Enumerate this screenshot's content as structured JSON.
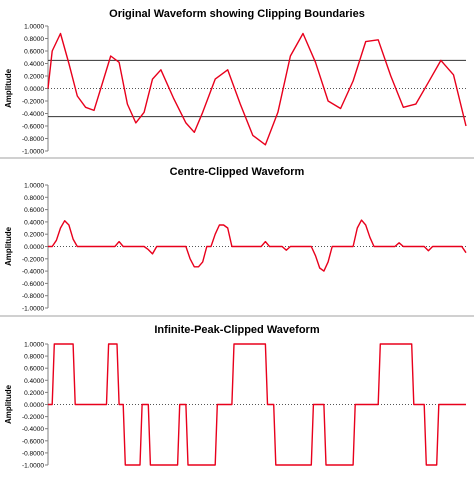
{
  "chart_data": [
    {
      "type": "line",
      "title": "Original Waveform showing Clipping Boundaries",
      "ylabel": "Amplitude",
      "ylim": [
        -1,
        1
      ],
      "yticks": [
        "1.0000",
        "0.8000",
        "0.6000",
        "0.4000",
        "0.2000",
        "0.0000",
        "-0.2000",
        "-0.4000",
        "-0.6000",
        "-0.8000",
        "-1.0000"
      ],
      "grid": false,
      "clip_lines": [
        0.45,
        -0.45
      ],
      "series": [
        {
          "color": "#e8001c",
          "x": [
            0,
            1,
            3,
            5,
            7,
            9,
            11,
            13,
            15,
            17,
            19,
            21,
            23,
            25,
            27,
            30,
            33,
            35,
            37,
            40,
            43,
            46,
            49,
            52,
            55,
            58,
            61,
            64,
            67,
            70,
            73,
            76,
            79,
            82,
            85,
            88,
            91,
            94,
            97,
            100
          ],
          "y": [
            0,
            0.6,
            0.88,
            0.4,
            -0.12,
            -0.3,
            -0.35,
            0.08,
            0.52,
            0.42,
            -0.25,
            -0.55,
            -0.38,
            0.15,
            0.3,
            -0.15,
            -0.55,
            -0.7,
            -0.38,
            0.15,
            0.3,
            -0.25,
            -0.75,
            -0.9,
            -0.38,
            0.52,
            0.88,
            0.42,
            -0.2,
            -0.32,
            0.12,
            0.75,
            0.78,
            0.2,
            -0.3,
            -0.25,
            0.1,
            0.45,
            0.22,
            -0.6
          ]
        }
      ]
    },
    {
      "type": "line",
      "title": "Centre-Clipped  Waveform",
      "ylabel": "Amplitude",
      "ylim": [
        -1,
        1
      ],
      "yticks": [
        "1.0000",
        "0.8000",
        "0.6000",
        "0.4000",
        "0.2000",
        "0.0000",
        "-0.2000",
        "-0.4000",
        "-0.6000",
        "-0.8000",
        "-1.0000"
      ],
      "grid": false,
      "series": [
        {
          "color": "#e8001c",
          "x": [
            0,
            1,
            2,
            3,
            4,
            5,
            6,
            7,
            8,
            9,
            10,
            11,
            12,
            13,
            14,
            15,
            16,
            17,
            18,
            19,
            20,
            21,
            22,
            23,
            24,
            25,
            26,
            27,
            28,
            29,
            30,
            31,
            32,
            33,
            34,
            35,
            36,
            37,
            38,
            39,
            40,
            41,
            42,
            43,
            44,
            45,
            46,
            47,
            48,
            49,
            50,
            51,
            52,
            53,
            54,
            55,
            56,
            57,
            58,
            59,
            60,
            61,
            62,
            63,
            64,
            65,
            66,
            67,
            68,
            69,
            70,
            71,
            72,
            73,
            74,
            75,
            76,
            77,
            78,
            79,
            80,
            81,
            82,
            83,
            84,
            85,
            86,
            87,
            88,
            89,
            90,
            91,
            92,
            93,
            94,
            95,
            96,
            97,
            98,
            99,
            100
          ],
          "y": [
            0,
            0,
            0.1,
            0.3,
            0.42,
            0.35,
            0.12,
            0,
            0,
            0,
            0,
            0,
            0,
            0,
            0,
            0,
            0,
            0.08,
            0,
            0,
            0,
            0,
            0,
            0,
            -0.05,
            -0.12,
            0,
            0,
            0,
            0,
            0,
            0,
            0,
            0,
            -0.2,
            -0.33,
            -0.33,
            -0.25,
            0,
            0,
            0.2,
            0.35,
            0.35,
            0.3,
            0,
            0,
            0,
            0,
            0,
            0,
            0,
            0,
            0.08,
            0,
            0,
            0,
            0,
            -0.06,
            0,
            0,
            0,
            0,
            0,
            0,
            -0.15,
            -0.35,
            -0.4,
            -0.25,
            0,
            0,
            0,
            0,
            0,
            0,
            0.3,
            0.43,
            0.35,
            0.15,
            0,
            0,
            0,
            0,
            0,
            0,
            0.06,
            0,
            0,
            0,
            0,
            0,
            0,
            -0.07,
            0,
            0,
            0,
            0,
            0,
            0,
            0,
            0,
            -0.1
          ]
        }
      ]
    },
    {
      "type": "line",
      "title": "Infinite-Peak-Clipped  Waveform",
      "ylabel": "Amplitude",
      "ylim": [
        -1,
        1
      ],
      "yticks": [
        "1.0000",
        "0.8000",
        "0.6000",
        "0.4000",
        "0.2000",
        "0.0000",
        "-0.2000",
        "-0.4000",
        "-0.6000",
        "-0.8000",
        "-1.0000"
      ],
      "grid": false,
      "series": [
        {
          "color": "#e8001c",
          "x": [
            0,
            1,
            1.5,
            6,
            6.5,
            14,
            14.5,
            16.5,
            17,
            18,
            18.5,
            22,
            22.5,
            24,
            24.5,
            31,
            31.5,
            33,
            33.5,
            40,
            40.5,
            44,
            44.5,
            52,
            52.5,
            54,
            54.5,
            63,
            63.5,
            66,
            66.5,
            73,
            73.5,
            79,
            79.5,
            87,
            87.5,
            90,
            90.5,
            93,
            93.5,
            100
          ],
          "y": [
            0,
            0,
            1,
            1,
            0,
            0,
            1,
            1,
            0,
            0,
            -1,
            -1,
            0,
            0,
            -1,
            -1,
            0,
            0,
            -1,
            -1,
            0,
            0,
            1,
            1,
            0,
            0,
            -1,
            -1,
            0,
            0,
            -1,
            -1,
            0,
            0,
            1,
            1,
            0,
            0,
            -1,
            -1,
            0,
            0
          ]
        }
      ]
    }
  ]
}
